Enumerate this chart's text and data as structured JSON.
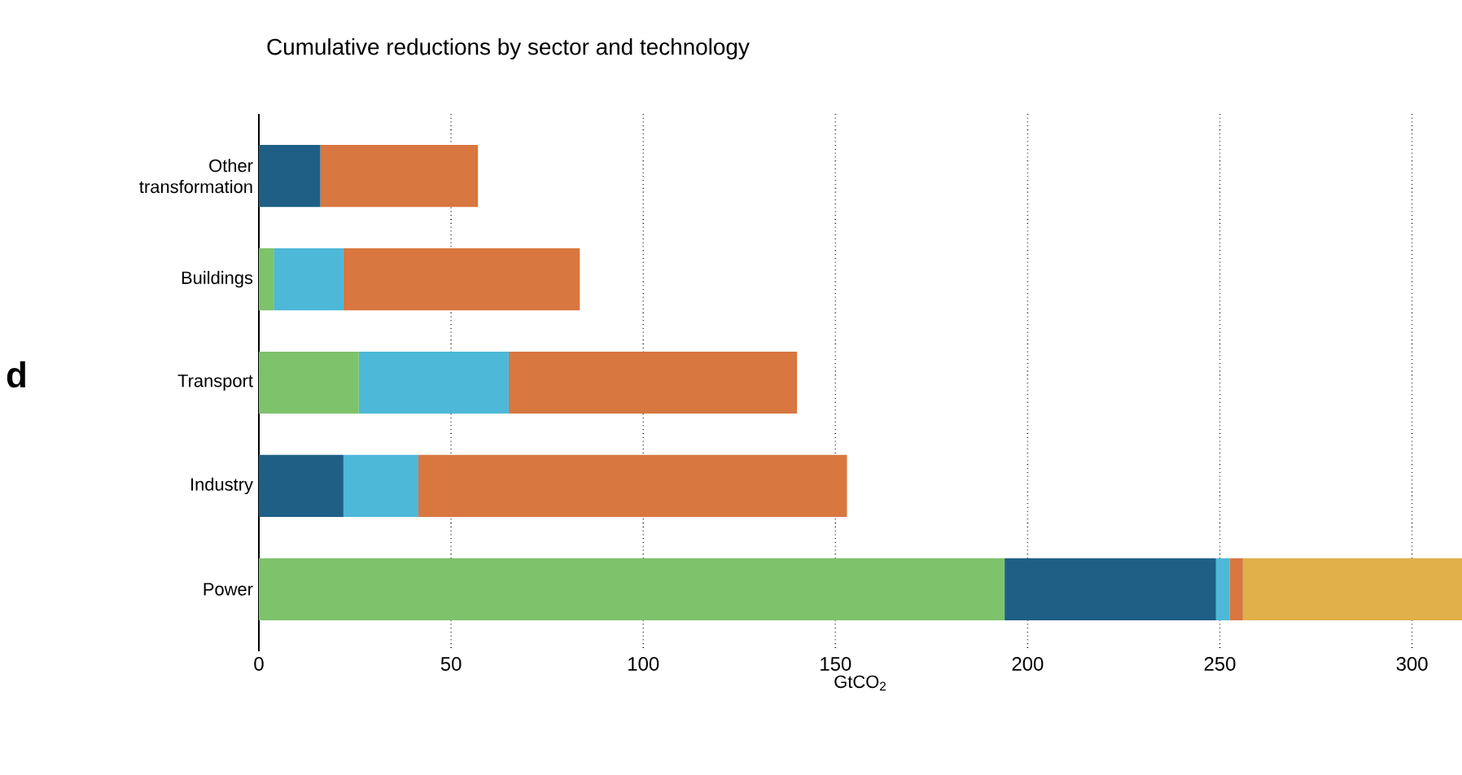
{
  "chart_data": {
    "type": "bar",
    "orientation": "horizontal",
    "stacked": true,
    "title": "Cumulative reductions by sector and technology",
    "xlabel": "GtCO$_{2}$",
    "annotations": [
      "d"
    ],
    "categories": [
      "Other\ntransformation",
      "Buildings",
      "Transport",
      "Industry",
      "Power"
    ],
    "series": [
      {
        "color": "#7dc36b",
        "values": [
          0,
          4,
          26,
          0,
          194
        ]
      },
      {
        "color": "#1f5f86",
        "values": [
          16,
          0,
          0,
          22,
          55
        ]
      },
      {
        "color": "#4db8d8",
        "values": [
          0,
          18,
          39,
          19.5,
          3.5
        ]
      },
      {
        "color": "#d8773f",
        "values": [
          41,
          61.5,
          75,
          111.5,
          3.5
        ]
      },
      {
        "color": "#e0b04a",
        "values": [
          0,
          0,
          0,
          0,
          57
        ]
      }
    ],
    "xlim": [
      0,
      313
    ],
    "xticks": [
      0,
      50,
      100,
      150,
      200,
      250,
      300
    ],
    "grid": "x"
  }
}
